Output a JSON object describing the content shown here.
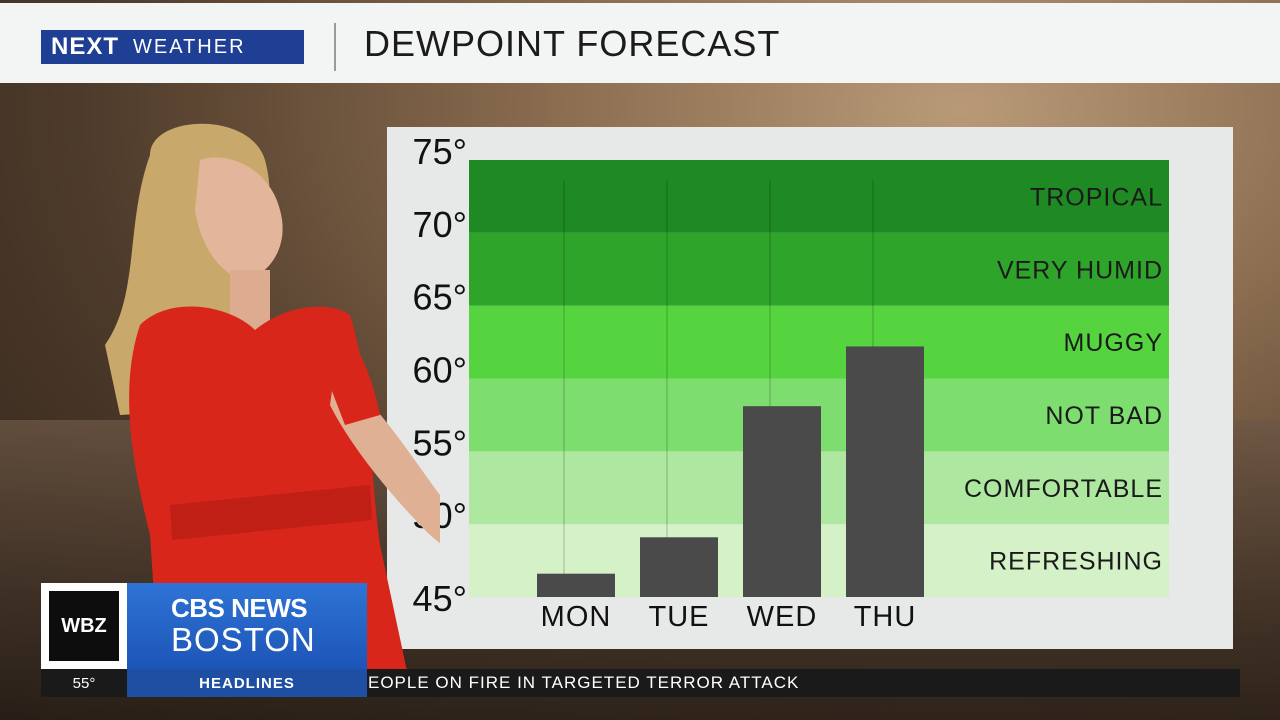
{
  "header": {
    "logo_next": "NEXT",
    "logo_weather": "WEATHER",
    "title": "DEWPOINT FORECAST"
  },
  "chart_data": {
    "type": "bar",
    "categories": [
      "MON",
      "TUE",
      "WED",
      "THU"
    ],
    "values": [
      46.6,
      49.1,
      58.1,
      62.2
    ],
    "y_ticks": [
      "45°",
      "50°",
      "55°",
      "60°",
      "65°",
      "70°",
      "75°"
    ],
    "ylim": [
      45,
      75
    ],
    "grid": false,
    "bands": [
      {
        "label": "REFRESHING",
        "from": 45,
        "to": 50,
        "color": "#d5f1c8"
      },
      {
        "label": "COMFORTABLE",
        "from": 50,
        "to": 55,
        "color": "#aee79f"
      },
      {
        "label": "NOT BAD",
        "from": 55,
        "to": 60,
        "color": "#7edd6f"
      },
      {
        "label": "MUGGY",
        "from": 60,
        "to": 65,
        "color": "#56d43f"
      },
      {
        "label": "VERY HUMID",
        "from": 65,
        "to": 70,
        "color": "#2ea52a"
      },
      {
        "label": "TROPICAL",
        "from": 70,
        "to": 75,
        "color": "#1f8a23"
      }
    ],
    "bar_color": "#4a4a4a"
  },
  "lower_third": {
    "station": "WBZ",
    "network": "CBS NEWS",
    "city": "BOSTON",
    "temperature": "55°",
    "headlines_label": "HEADLINES",
    "crawl": "EOPLE ON FIRE IN TARGETED TERROR ATTACK"
  }
}
